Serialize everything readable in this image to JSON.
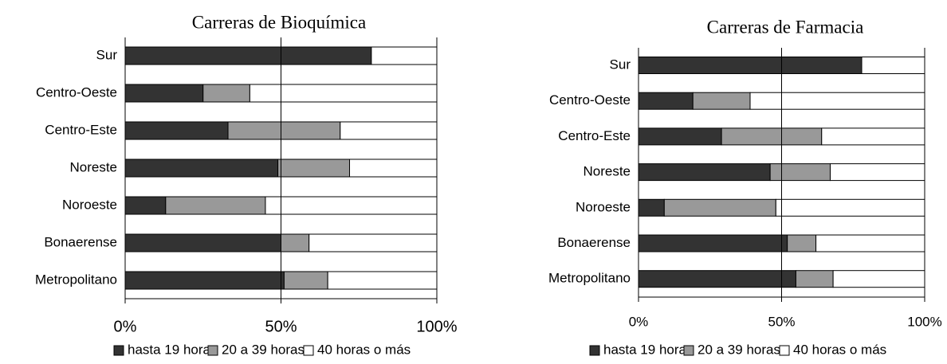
{
  "chart_data": [
    {
      "type": "stacked_barh",
      "title": "Carreras de Bioquímica",
      "categories": [
        "Sur",
        "Centro-Oeste",
        "Centro-Este",
        "Noreste",
        "Noroeste",
        "Bonaerense",
        "Metropolitano"
      ],
      "series": [
        {
          "name": "hasta 19 horas",
          "color": "#333333",
          "values": [
            79,
            25,
            33,
            49,
            13,
            50,
            51
          ]
        },
        {
          "name": "20 a 39 horas",
          "color": "#999999",
          "values": [
            0,
            15,
            36,
            23,
            32,
            9,
            14
          ]
        },
        {
          "name": "40 horas o más",
          "color": "#ffffff",
          "values": [
            21,
            60,
            31,
            28,
            55,
            41,
            35
          ]
        }
      ],
      "xlim": [
        0,
        100
      ],
      "xticks": [
        {
          "value": 0,
          "label": "0%"
        },
        {
          "value": 50,
          "label": "50%"
        },
        {
          "value": 100,
          "label": "100%"
        }
      ],
      "grid": true,
      "legend": "bottom"
    },
    {
      "type": "stacked_barh",
      "title": "Carreras de Farmacia",
      "categories": [
        "Sur",
        "Centro-Oeste",
        "Centro-Este",
        "Noreste",
        "Noroeste",
        "Bonaerense",
        "Metropolitano"
      ],
      "series": [
        {
          "name": "hasta 19 horas",
          "color": "#333333",
          "values": [
            78,
            19,
            29,
            46,
            9,
            52,
            55
          ]
        },
        {
          "name": "20 a 39 horas",
          "color": "#999999",
          "values": [
            0,
            20,
            35,
            21,
            39,
            10,
            13
          ]
        },
        {
          "name": "40 horas o más",
          "color": "#ffffff",
          "values": [
            22,
            61,
            36,
            33,
            52,
            38,
            32
          ]
        }
      ],
      "xlim": [
        0,
        100
      ],
      "xticks": [
        {
          "value": 0,
          "label": "0%"
        },
        {
          "value": 50,
          "label": "50%"
        },
        {
          "value": 100,
          "label": "100%"
        }
      ],
      "grid": true,
      "legend": "bottom"
    }
  ]
}
